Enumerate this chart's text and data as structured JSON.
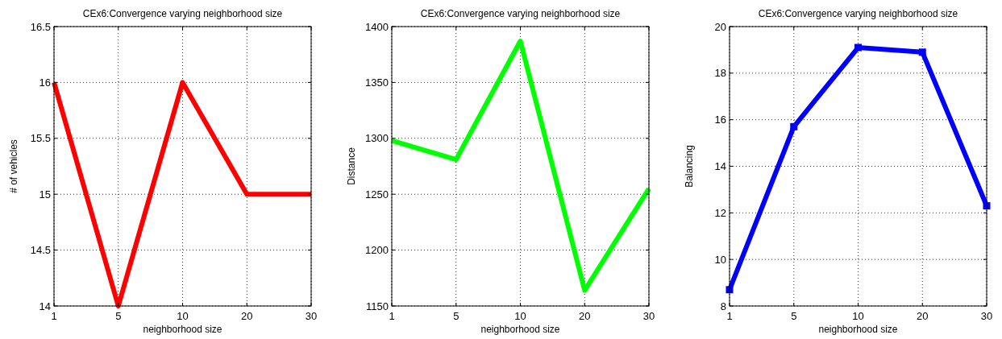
{
  "chart_data": [
    {
      "type": "line",
      "title": "CEx6:Convergence varying neighborhood size",
      "xlabel": "neighborhood size",
      "ylabel": "# of vehicles",
      "categories": [
        "1",
        "5",
        "10",
        "20",
        "30"
      ],
      "series": [
        {
          "color": "#ff0000",
          "values": [
            16,
            14,
            16,
            15,
            15
          ]
        }
      ],
      "ylim": [
        14,
        16.5
      ],
      "yticks": [
        14,
        14.5,
        15,
        15.5,
        16,
        16.5
      ],
      "grid": true,
      "marker": "none"
    },
    {
      "type": "line",
      "title": "CEx6:Convergence varying neighborhood size",
      "xlabel": "neighborhood size",
      "ylabel": "Distance",
      "categories": [
        "1",
        "5",
        "10",
        "20",
        "30"
      ],
      "series": [
        {
          "color": "#00ff00",
          "values": [
            1298,
            1281,
            1387,
            1164,
            1255
          ]
        }
      ],
      "ylim": [
        1150,
        1400
      ],
      "yticks": [
        1150,
        1200,
        1250,
        1300,
        1350,
        1400
      ],
      "grid": true,
      "marker": "none"
    },
    {
      "type": "line",
      "title": "CEx6:Convergence varying neighborhood size",
      "xlabel": "neighborhood size",
      "ylabel": "Balancing",
      "categories": [
        "1",
        "5",
        "10",
        "20",
        "30"
      ],
      "series": [
        {
          "color": "#0000ff",
          "values": [
            8.7,
            15.7,
            19.1,
            18.9,
            12.3
          ]
        }
      ],
      "ylim": [
        8,
        20
      ],
      "yticks": [
        8,
        10,
        12,
        14,
        16,
        18,
        20
      ],
      "grid": true,
      "marker": "square"
    }
  ]
}
